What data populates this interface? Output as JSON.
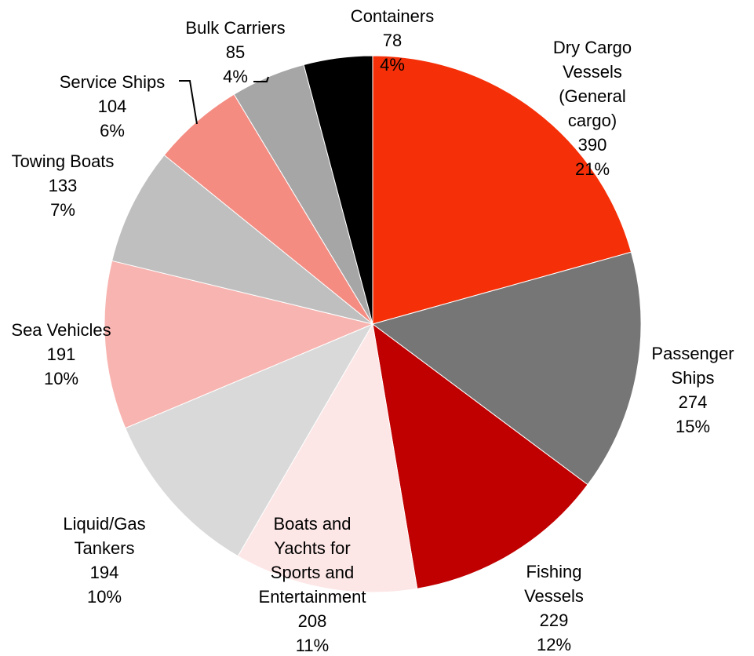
{
  "chart_data": {
    "type": "pie",
    "categories": [
      "Dry Cargo Vessels (General cargo)",
      "Passenger Ships",
      "Fishing Vessels",
      "Boats and Yachts for Sports and Entertainment",
      "Liquid/Gas Tankers",
      "Sea Vehicles",
      "Towing Boats",
      "Service Ships",
      "Bulk Carriers",
      "Containers"
    ],
    "values": [
      390,
      274,
      229,
      208,
      194,
      191,
      133,
      104,
      85,
      78
    ],
    "percent_labels": [
      "21%",
      "15%",
      "12%",
      "11%",
      "10%",
      "10%",
      "7%",
      "6%",
      "4%",
      "4%"
    ],
    "colors": [
      "#f52f08",
      "#767676",
      "#c00000",
      "#fde6e6",
      "#d9d9d9",
      "#f8b4b0",
      "#bfbfbf",
      "#f48c82",
      "#a6a6a6",
      "#000000"
    ]
  }
}
